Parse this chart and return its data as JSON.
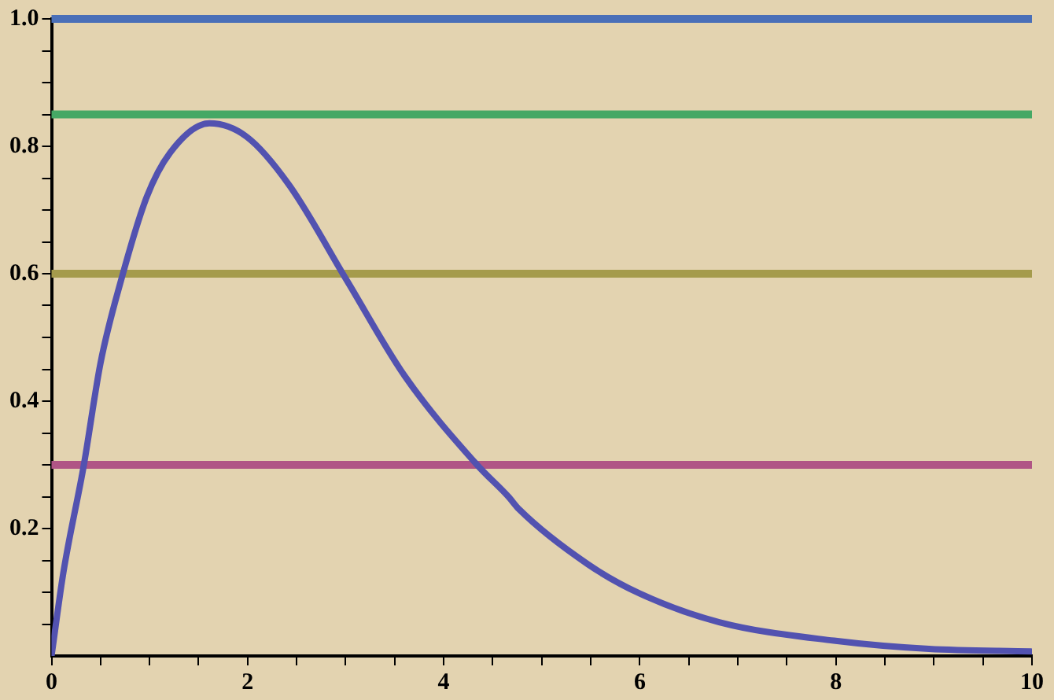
{
  "chart_data": {
    "type": "line",
    "grid": false,
    "legend": false,
    "marker": "none",
    "line_style": "solid",
    "xlim": [
      0,
      10
    ],
    "ylim": [
      0,
      1
    ],
    "xticks": [
      0,
      {
        "value": 0.5,
        "label": null
      },
      {
        "value": 1,
        "label": null
      },
      {
        "value": 1.5,
        "label": null
      },
      2,
      {
        "value": 2.5,
        "label": null
      },
      {
        "value": 3,
        "label": null
      },
      {
        "value": 3.5,
        "label": null
      },
      4,
      {
        "value": 4.5,
        "label": null
      },
      {
        "value": 5,
        "label": null
      },
      {
        "value": 5.5,
        "label": null
      },
      6,
      {
        "value": 6.5,
        "label": null
      },
      {
        "value": 7,
        "label": null
      },
      {
        "value": 7.5,
        "label": null
      },
      8,
      {
        "value": 8.5,
        "label": null
      },
      {
        "value": 9,
        "label": null
      },
      {
        "value": 9.5,
        "label": null
      },
      10
    ],
    "yticks": [
      {
        "value": 0.05,
        "label": null
      },
      {
        "value": 0.1,
        "label": null
      },
      {
        "value": 0.15,
        "label": null
      },
      0.2,
      {
        "value": 0.25,
        "label": null
      },
      {
        "value": 0.3,
        "label": null
      },
      {
        "value": 0.35,
        "label": null
      },
      0.4,
      {
        "value": 0.45,
        "label": null
      },
      {
        "value": 0.5,
        "label": null
      },
      {
        "value": 0.55,
        "label": null
      },
      0.6,
      {
        "value": 0.65,
        "label": null
      },
      {
        "value": 0.7,
        "label": null
      },
      {
        "value": 0.75,
        "label": null
      },
      0.8,
      {
        "value": 0.85,
        "label": null
      },
      {
        "value": 0.9,
        "label": null
      },
      {
        "value": 0.95,
        "label": null
      },
      {
        "value": 1.0,
        "label": "1.0"
      }
    ],
    "series": [
      {
        "color": "#5252b0",
        "x": [
          0,
          0.12,
          0.33,
          0.5,
          0.71,
          0.97,
          1.21,
          1.61,
          1.99,
          2.42,
          3.01,
          3.6,
          4.34,
          4.66,
          4.77,
          5.47,
          6.0,
          6.81,
          7.98,
          8.95,
          9.99
        ],
        "values": [
          0,
          0.13,
          0.3,
          0.46,
          0.59,
          0.72,
          0.79,
          0.836,
          0.815,
          0.74,
          0.59,
          0.44,
          0.3,
          0.25,
          0.23,
          0.144,
          0.098,
          0.053,
          0.024,
          0.011,
          0.007
        ]
      }
    ],
    "ref_lines": [
      {
        "axis": "y",
        "value": 1.0,
        "color": "#4a6fb8"
      },
      {
        "axis": "y",
        "value": 0.85,
        "color": "#45a865"
      },
      {
        "axis": "y",
        "value": 0.6,
        "color": "#a59b4c"
      },
      {
        "axis": "y",
        "value": 0.3,
        "color": "#b05585"
      }
    ]
  }
}
